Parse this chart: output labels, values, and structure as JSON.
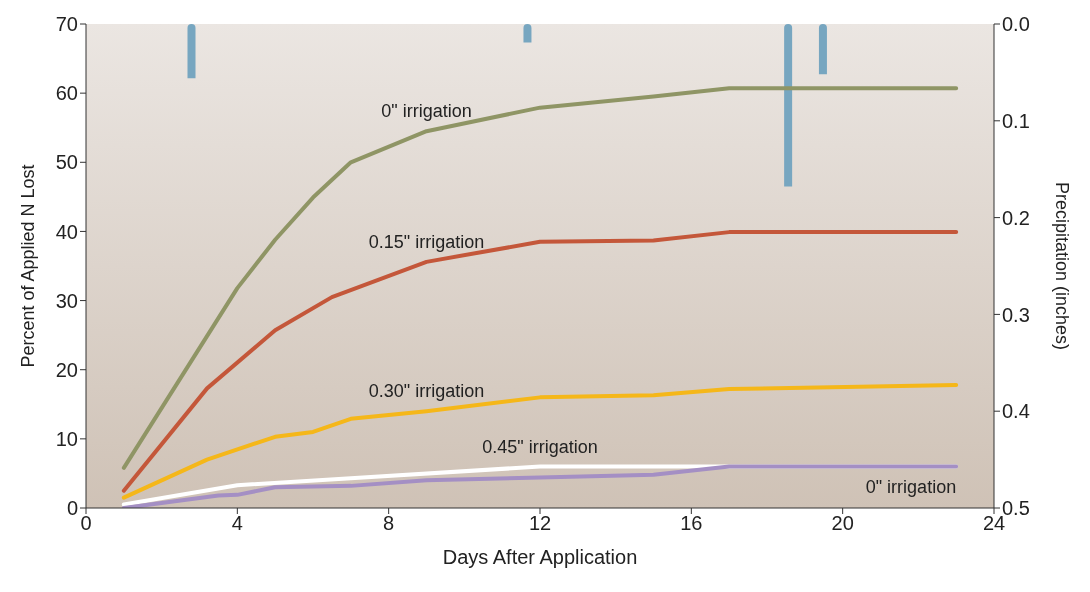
{
  "chart_data": {
    "type": "line",
    "xlabel": "Days After Application",
    "ylabel": "Percent of Applied N Lost",
    "y2label": "Precipitation (inches)",
    "xlim": [
      0,
      24
    ],
    "xticks": [
      0,
      4,
      8,
      12,
      16,
      20,
      24
    ],
    "ylim": [
      0,
      70
    ],
    "yticks": [
      0,
      10,
      20,
      30,
      40,
      50,
      60,
      70
    ],
    "y2lim": [
      0.5,
      0
    ],
    "y2ticks": [
      {
        "value": 0,
        "label": "0.0"
      },
      0.1,
      0.2,
      0.3,
      0.4,
      0.5
    ],
    "marker": "none",
    "line_style": "solid",
    "series": [
      {
        "name": "0\" irrigation",
        "color": "#8f9565",
        "x": [
          1,
          4,
          5,
          6,
          7,
          9,
          12,
          15,
          17,
          23
        ],
        "values": [
          5.8,
          31.8,
          38.8,
          44.9,
          50.0,
          54.5,
          57.9,
          59.5,
          60.7,
          60.7
        ]
      },
      {
        "name": "0.15\" irrigation",
        "color": "#c4573a",
        "x": [
          1,
          3.2,
          5,
          6.5,
          9,
          12,
          15,
          17,
          23
        ],
        "values": [
          2.5,
          17.3,
          25.7,
          30.5,
          35.6,
          38.5,
          38.7,
          39.9,
          39.9
        ]
      },
      {
        "name": "0.30\" irrigation",
        "color": "#f5b719",
        "x": [
          1,
          3.2,
          5,
          6,
          7,
          9,
          12,
          15,
          17,
          23
        ],
        "values": [
          1.5,
          7,
          10.3,
          11,
          12.9,
          14,
          16,
          16.3,
          17.2,
          17.8
        ]
      },
      {
        "name": "0.45\" irrigation",
        "color": "#ffffff",
        "x": [
          1,
          4,
          7,
          12,
          16,
          17,
          23
        ],
        "values": [
          0.5,
          3.3,
          4.3,
          6,
          6,
          6,
          6
        ]
      },
      {
        "name": "0\" irrigation",
        "color": "#a48fc4",
        "x": [
          1,
          3.5,
          4,
          5,
          7,
          9,
          12,
          15,
          17,
          23
        ],
        "values": [
          0,
          1.8,
          1.9,
          3,
          3.2,
          4,
          4.4,
          4.8,
          6,
          6
        ]
      },
      {
        "type": "bar",
        "axis": "y2",
        "color": "#77a6c0",
        "x": [
          2.78,
          11.66,
          18.55,
          19.47
        ],
        "values": [
          0.056,
          0.019,
          0.168,
          0.052
        ]
      }
    ]
  }
}
